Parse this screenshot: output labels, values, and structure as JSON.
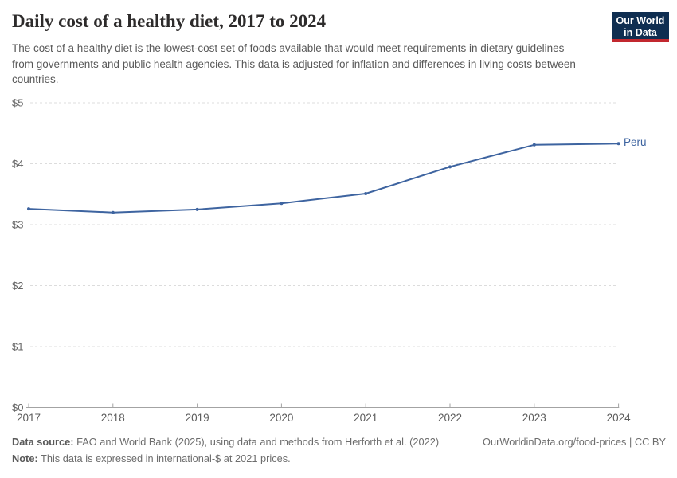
{
  "header": {
    "title": "Daily cost of a healthy diet, 2017 to 2024",
    "subtitle": "The cost of a healthy diet is the lowest-cost set of foods available that would meet requirements in dietary guidelines from governments and public health agencies. This data is adjusted for inflation and differences in living costs between countries.",
    "logo": {
      "line1": "Our World",
      "line2": "in Data"
    }
  },
  "chart_data": {
    "type": "line",
    "title": "Daily cost of a healthy diet, 2017 to 2024",
    "x": [
      2017,
      2018,
      2019,
      2020,
      2021,
      2022,
      2023,
      2024
    ],
    "series": [
      {
        "name": "Peru",
        "values": [
          3.26,
          3.2,
          3.25,
          3.35,
          3.51,
          3.95,
          4.31,
          4.33
        ],
        "color": "#3e64a0"
      }
    ],
    "xlabel": "",
    "ylabel": "",
    "ylim": [
      0,
      5
    ],
    "yticks": [
      0,
      1,
      2,
      3,
      4,
      5
    ],
    "ytick_labels": [
      "$0",
      "$1",
      "$2",
      "$3",
      "$4",
      "$5"
    ],
    "grid": "horizontal-dashed",
    "legend": "end-of-line-label",
    "point_markers": true
  },
  "footer": {
    "data_source_label": "Data source:",
    "data_source_text": "FAO and World Bank (2025), using data and methods from Herforth et al. (2022)",
    "note_label": "Note:",
    "note_text": "This data is expressed in international-$ at 2021 prices.",
    "link": "OurWorldinData.org/food-prices | CC BY"
  },
  "colors": {
    "accent_line": "#3e64a0",
    "gridline": "#dcdcdc",
    "axis": "#a3a3a3",
    "logo_navy": "#0f2e51",
    "logo_red": "#c2282f"
  }
}
